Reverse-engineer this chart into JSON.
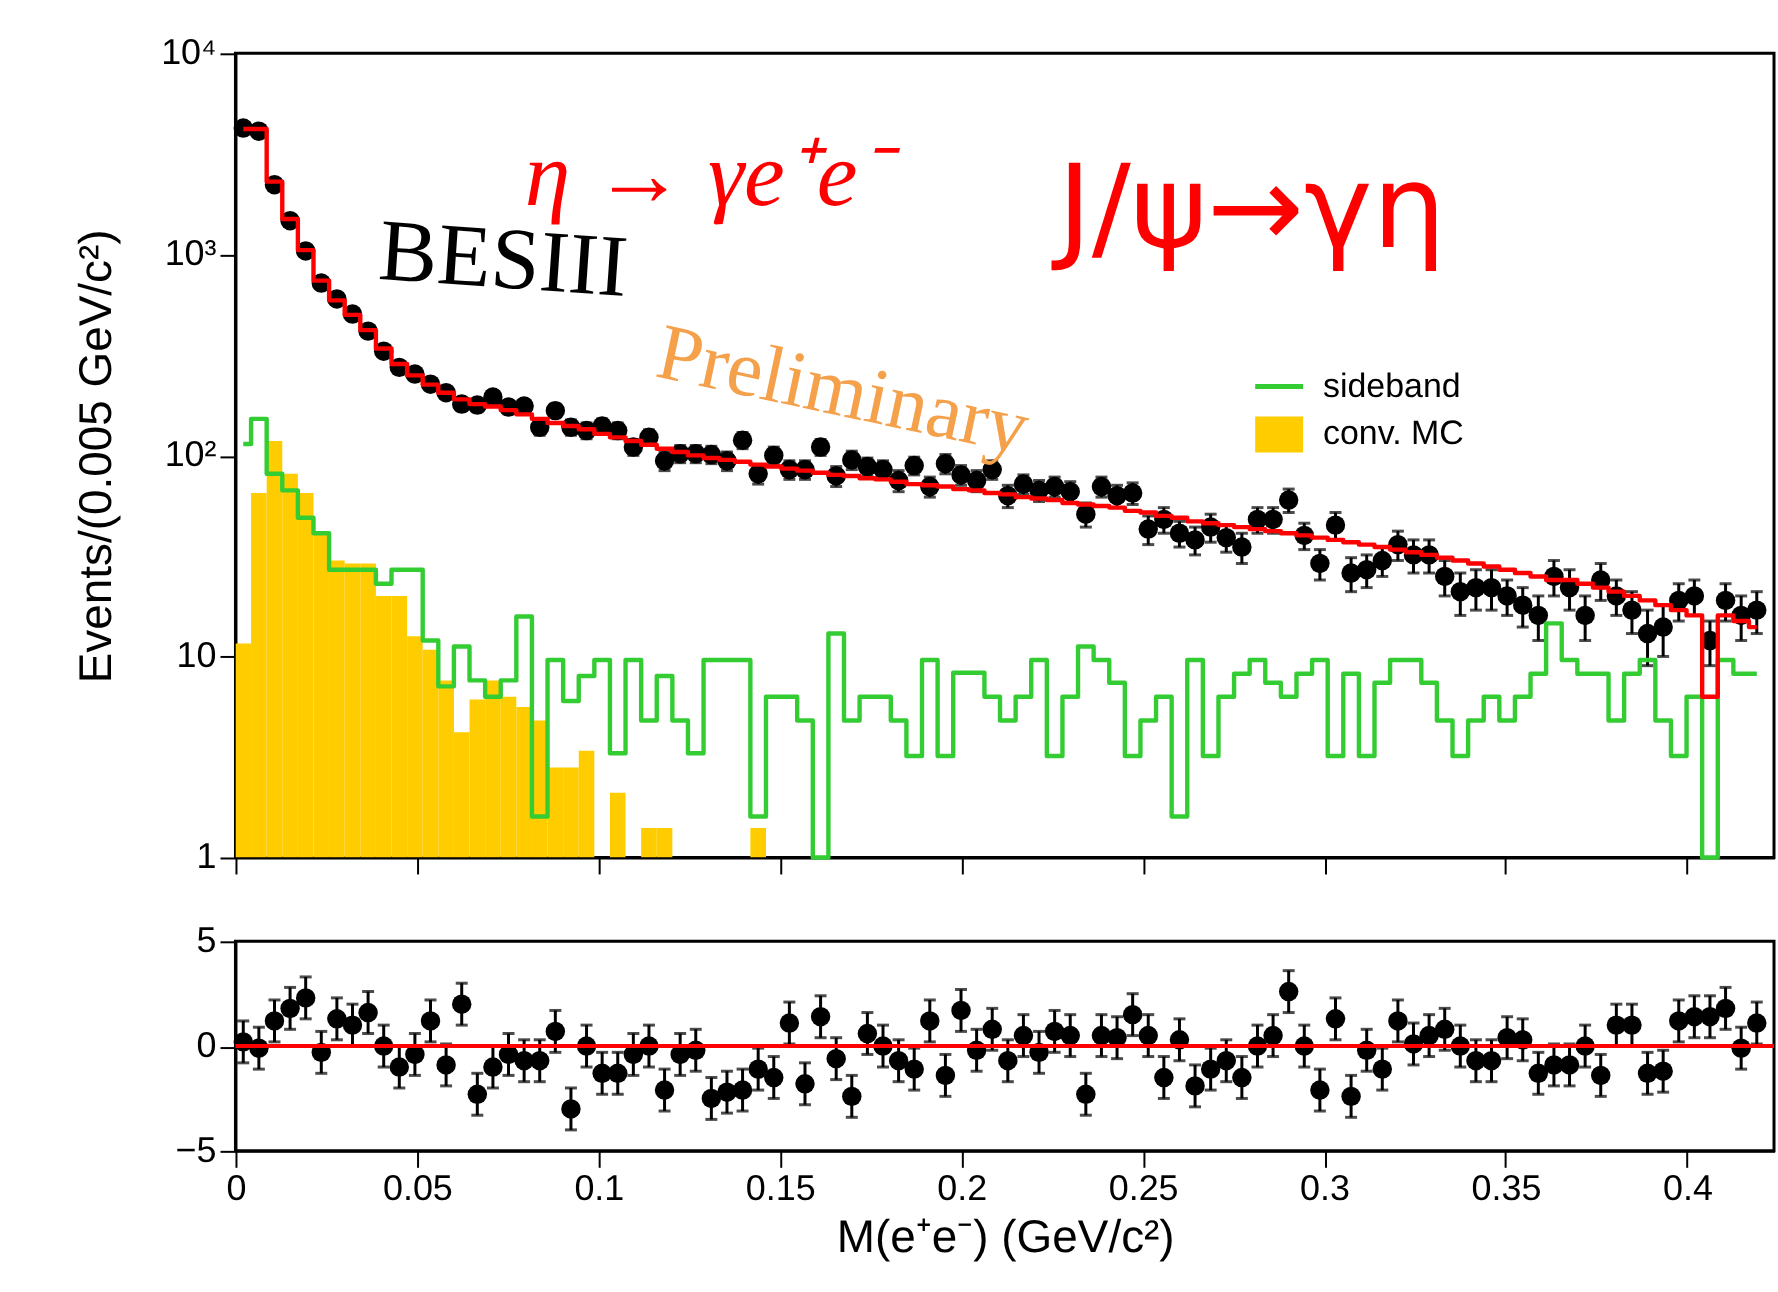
{
  "chart_data": [
    {
      "type": "step",
      "ylabel": "Events/(0.005 GeV/c²)",
      "annotations": [
        "η → γe⁺e⁻",
        "J/ψ→γη",
        "BESIII",
        "Preliminary"
      ],
      "x": [
        0.00215,
        0.00645,
        0.01075,
        0.01505,
        0.01935,
        0.02365,
        0.02795,
        0.03225,
        0.03655,
        0.04085,
        0.04515,
        0.04945,
        0.05375,
        0.05805,
        0.06235,
        0.06665,
        0.07095,
        0.07525,
        0.07955,
        0.08385,
        0.08815,
        0.09245,
        0.09675,
        0.10105,
        0.10535,
        0.10965,
        0.11395,
        0.11825,
        0.12255,
        0.12685,
        0.13115,
        0.13545,
        0.13975,
        0.14405,
        0.14835,
        0.15265,
        0.15695,
        0.16125,
        0.16555,
        0.16985,
        0.17415,
        0.17845,
        0.18275,
        0.18705,
        0.19135,
        0.19565,
        0.19995,
        0.20425,
        0.20855,
        0.21285,
        0.21715,
        0.22145,
        0.22575,
        0.23005,
        0.23435,
        0.23865,
        0.24295,
        0.24725,
        0.25155,
        0.25585,
        0.26015,
        0.26445,
        0.26875,
        0.27305,
        0.27735,
        0.28165,
        0.28595,
        0.29025,
        0.29455,
        0.29885,
        0.30315,
        0.30745,
        0.31175,
        0.31605,
        0.32035,
        0.32465,
        0.32895,
        0.33325,
        0.33755,
        0.34185,
        0.34615,
        0.35045,
        0.35475,
        0.35905,
        0.36335,
        0.36765,
        0.37195,
        0.37625,
        0.38055,
        0.38485,
        0.38915,
        0.39345,
        0.39775,
        0.40205,
        0.40635,
        0.41065,
        0.41495,
        0.41925
      ],
      "series": [
        {
          "type": "step",
          "name": "sideband",
          "color": "#33cc33",
          "values": [
            114,
            152,
            81,
            67,
            49,
            41,
            27,
            27,
            27,
            23,
            27,
            27,
            12,
            7.1,
            11.2,
            7.6,
            6.3,
            7.6,
            15.8,
            1.6,
            9.6,
            6,
            8,
            9.6,
            3.3,
            9.6,
            4.8,
            8,
            4.8,
            3.3,
            9.6,
            9.6,
            9.6,
            1.6,
            6.3,
            6.3,
            4.8,
            1,
            13,
            4.8,
            6.3,
            6.3,
            4.8,
            3.2,
            9.6,
            3.2,
            8.3,
            8.3,
            6.3,
            4.8,
            6.3,
            9.6,
            3.2,
            6.3,
            11.2,
            9.6,
            7.4,
            3.2,
            4.8,
            6.3,
            1.6,
            9.6,
            3.2,
            6.3,
            8.2,
            9.6,
            7.4,
            6.3,
            8.2,
            9.6,
            3.2,
            8.2,
            3.2,
            7.4,
            9.6,
            9.6,
            7.4,
            4.8,
            3.2,
            4.8,
            6.3,
            4.8,
            6.3,
            8.2,
            14.6,
            9.6,
            8.2,
            8.2,
            4.8,
            8.2,
            9.6,
            4.8,
            3.2,
            6.3,
            1,
            9.6,
            8.2,
            8.2
          ]
        },
        {
          "type": "bar",
          "name": "conv. MC",
          "color": "#ffcc00",
          "values": [
            11.6,
            65,
            118,
            81,
            65,
            42,
            30,
            29,
            29,
            20,
            20,
            12.6,
            10.8,
            7.6,
            4.2,
            6.1,
            7.6,
            6.3,
            5.6,
            4.8,
            2.8,
            2.8,
            3.4,
            null,
            2.1,
            null,
            1.4,
            1.4,
            null,
            null,
            null,
            null,
            null,
            1.4,
            null,
            null,
            null,
            null,
            null,
            null,
            null,
            null,
            null,
            null,
            null,
            null,
            null,
            null,
            null,
            null,
            null,
            null,
            null,
            null,
            null,
            null,
            null,
            null,
            null,
            null,
            null,
            null,
            null,
            null,
            null,
            null,
            null,
            null,
            null,
            null,
            null,
            null,
            null,
            null,
            null,
            null,
            null,
            null,
            null,
            null,
            null,
            null,
            null,
            null,
            null,
            null,
            null,
            null,
            null,
            null,
            null,
            null,
            null,
            null,
            null,
            null,
            null,
            null
          ]
        },
        {
          "type": "step",
          "color": "#ff0000",
          "values": [
            4200,
            4200,
            2300,
            1500,
            1050,
            740,
            590,
            500,
            420,
            340,
            285,
            250,
            225,
            205,
            190,
            180,
            175,
            168,
            160,
            152,
            145,
            140,
            135,
            128,
            123,
            118,
            113,
            108,
            104,
            100,
            97,
            95,
            93,
            90,
            88,
            86,
            84,
            82,
            80,
            79,
            77,
            76,
            74,
            72,
            71,
            70,
            68,
            67,
            65,
            64,
            62,
            61,
            60,
            58,
            57,
            56,
            55,
            53,
            52,
            50,
            49,
            47,
            46,
            45,
            44,
            43,
            42,
            41,
            40,
            39,
            38,
            37,
            36,
            35,
            34,
            33,
            32,
            31,
            30,
            29,
            28,
            27,
            26,
            25,
            24,
            24,
            23,
            22,
            21,
            20,
            19,
            18,
            17,
            16,
            6.3,
            16,
            15,
            14
          ]
        },
        {
          "type": "scatter",
          "color": "#000000",
          "marker": "circle",
          "values": [
            4250,
            4100,
            2220,
            1470,
            1040,
            720,
            600,
            505,
            415,
            330,
            274,
            254,
            226,
            205,
            180,
            178,
            195,
            174,
            176,
            138,
            167,
            138,
            133,
            140,
            133,
            110,
            123,
            94,
            102,
            102,
            101,
            94,
            119,
            81,
            100,
            85,
            85,
            110,
            79,
            95,
            88,
            85,
            75,
            89,
            70,
            91,
            80,
            75,
            85,
            63,
            72,
            67,
            70,
            66,
            51,
            70,
            63,
            65,
            43,
            48,
            41,
            38,
            44,
            39,
            35,
            48,
            48,
            60,
            40,
            29,
            45,
            26,
            27,
            30,
            36,
            32,
            32,
            25,
            21,
            22,
            22,
            20,
            18,
            16,
            25,
            22,
            16,
            24,
            20,
            17,
            13,
            14,
            19,
            20,
            12,
            19,
            16,
            17
          ],
          "errors": [
            65,
            64,
            47,
            38,
            32,
            27,
            24,
            22,
            20,
            18,
            17,
            16,
            15,
            14,
            13,
            13,
            14,
            13,
            13,
            12,
            13,
            12,
            12,
            12,
            12,
            10,
            11,
            10,
            10,
            10,
            10,
            10,
            11,
            9,
            10,
            9,
            9,
            10,
            9,
            10,
            9,
            9,
            9,
            9,
            8,
            10,
            9,
            9,
            9,
            8,
            8,
            8,
            8,
            8,
            7,
            8,
            8,
            8,
            7,
            7,
            6,
            6,
            7,
            6,
            6,
            7,
            7,
            8,
            6,
            5,
            7,
            5,
            5,
            5,
            6,
            6,
            6,
            5,
            5,
            5,
            5,
            4,
            4,
            4,
            5,
            5,
            4,
            5,
            4,
            4,
            4,
            4,
            4,
            4,
            3,
            4,
            4,
            4
          ]
        }
      ],
      "xlim": [
        0,
        0.424
      ],
      "xticks": [
        0,
        0.05,
        0.1,
        0.15,
        0.2,
        0.25,
        0.3,
        0.35,
        0.4
      ],
      "ylim": [
        1,
        10000
      ],
      "yticks": [
        1,
        10,
        {
          "value": 100,
          "label": "10²"
        },
        {
          "value": 1000,
          "label": "10³"
        },
        {
          "value": 10000,
          "label": "10⁴"
        }
      ],
      "log": true,
      "legend": "top right",
      "tick_labels": "y"
    },
    {
      "type": "scatter",
      "xlabel": "M(e⁺e⁻) (GeV/c²)",
      "color": "#000000",
      "marker": "circle",
      "x": [
        0.00215,
        0.00645,
        0.01075,
        0.01505,
        0.01935,
        0.02365,
        0.02795,
        0.03225,
        0.03655,
        0.04085,
        0.04515,
        0.04945,
        0.05375,
        0.05805,
        0.06235,
        0.06665,
        0.07095,
        0.07525,
        0.07955,
        0.08385,
        0.08815,
        0.09245,
        0.09675,
        0.10105,
        0.10535,
        0.10965,
        0.11395,
        0.11825,
        0.12255,
        0.12685,
        0.13115,
        0.13545,
        0.13975,
        0.14405,
        0.14835,
        0.15265,
        0.15695,
        0.16125,
        0.16555,
        0.16985,
        0.17415,
        0.17845,
        0.18275,
        0.18705,
        0.19135,
        0.19565,
        0.19995,
        0.20425,
        0.20855,
        0.21285,
        0.21715,
        0.22145,
        0.22575,
        0.23005,
        0.23435,
        0.23865,
        0.24295,
        0.24725,
        0.25155,
        0.25585,
        0.26015,
        0.26445,
        0.26875,
        0.27305,
        0.27735,
        0.28165,
        0.28595,
        0.29025,
        0.29455,
        0.29885,
        0.30315,
        0.30745,
        0.31175,
        0.31605,
        0.32035,
        0.32465,
        0.32895,
        0.33325,
        0.33755,
        0.34185,
        0.34615,
        0.35045,
        0.35475,
        0.35905,
        0.36335,
        0.36765,
        0.37195,
        0.37625,
        0.38055,
        0.38485,
        0.38915,
        0.39345,
        0.39775,
        0.40205,
        0.40635,
        0.41065,
        0.41495,
        0.41925
      ],
      "values": [
        0.2,
        -0.1,
        1.2,
        1.8,
        2.3,
        -0.3,
        1.3,
        1.0,
        1.6,
        0.0,
        -1.0,
        -0.4,
        1.2,
        -0.9,
        2.0,
        -2.3,
        -1.0,
        -0.4,
        -0.7,
        -0.7,
        0.7,
        -3.0,
        0.0,
        -1.3,
        -1.3,
        -0.4,
        0.0,
        -2.1,
        -0.4,
        -0.2,
        -2.5,
        -2.2,
        -2.1,
        -1.1,
        -1.5,
        1.1,
        -1.8,
        1.4,
        -0.6,
        -2.4,
        0.6,
        0.0,
        -0.7,
        -1.1,
        1.2,
        -1.4,
        1.7,
        -0.2,
        0.8,
        -0.7,
        0.5,
        -0.3,
        0.7,
        0.5,
        -2.3,
        0.5,
        0.4,
        1.5,
        0.5,
        -1.5,
        0.3,
        -1.9,
        -1.1,
        -0.7,
        -1.5,
        0.0,
        0.5,
        2.6,
        0.0,
        -2.1,
        1.3,
        -2.4,
        -0.2,
        -1.1,
        1.2,
        0.1,
        0.5,
        0.8,
        0.0,
        -0.7,
        -0.7,
        0.4,
        0.3,
        -1.3,
        -0.9,
        -0.9,
        0.0,
        -1.4,
        1.0,
        1.0,
        -1.3,
        -1.2,
        1.2,
        1.4,
        1.4,
        1.8,
        -0.1,
        1.1
      ],
      "errors": [
        1,
        1,
        1,
        1,
        1,
        1,
        1,
        1,
        1,
        1,
        1,
        1,
        1,
        1,
        1,
        1,
        1,
        1,
        1,
        1,
        1,
        1,
        1,
        1,
        1,
        1,
        1,
        1,
        1,
        1,
        1,
        1,
        1,
        1,
        1,
        1,
        1,
        1,
        1,
        1,
        1,
        1,
        1,
        1,
        1,
        1,
        1,
        1,
        1,
        1,
        1,
        1,
        1,
        1,
        1,
        1,
        1,
        1,
        1,
        1,
        1,
        1,
        1,
        1,
        1,
        1,
        1,
        1,
        1,
        1,
        1,
        1,
        1,
        1,
        1,
        1,
        1,
        1,
        1,
        1,
        1,
        1,
        1,
        1,
        1,
        1,
        1,
        1,
        1,
        1,
        1,
        1,
        1,
        1,
        1,
        1,
        1,
        1
      ],
      "xlim": [
        0,
        0.424
      ],
      "xticks": [
        0,
        0.05,
        0.1,
        0.15,
        0.2,
        0.25,
        0.3,
        0.35,
        0.4
      ],
      "ylim": [
        -5,
        5
      ],
      "yticks": [
        {
          "value": -5,
          "label": "−5"
        },
        0,
        5
      ],
      "ref_lines": [
        {
          "axis": "y",
          "value": 0,
          "color": "#ff0000"
        }
      ]
    }
  ]
}
